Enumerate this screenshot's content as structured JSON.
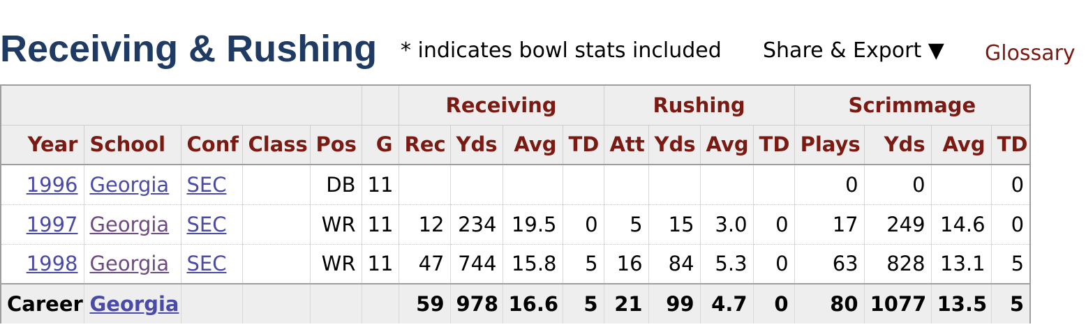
{
  "header": {
    "title": "Receiving & Rushing",
    "note": "* indicates bowl stats included",
    "share_label": "Share & Export ▼",
    "glossary_label": "Glossary"
  },
  "table": {
    "groups": {
      "receiving": "Receiving",
      "rushing": "Rushing",
      "scrimmage": "Scrimmage"
    },
    "columns": {
      "year": "Year",
      "school": "School",
      "conf": "Conf",
      "class": "Class",
      "pos": "Pos",
      "g": "G",
      "rec": "Rec",
      "rec_yds": "Yds",
      "rec_avg": "Avg",
      "rec_td": "TD",
      "att": "Att",
      "rush_yds": "Yds",
      "rush_avg": "Avg",
      "rush_td": "TD",
      "plays": "Plays",
      "scrim_yds": "Yds",
      "scrim_avg": "Avg",
      "scrim_td": "TD"
    },
    "rows": [
      {
        "year": "1996",
        "school": "Georgia",
        "conf": "SEC",
        "class": "",
        "pos": "DB",
        "g": "11",
        "rec": "",
        "rec_yds": "",
        "rec_avg": "",
        "rec_td": "",
        "att": "",
        "rush_yds": "",
        "rush_avg": "",
        "rush_td": "",
        "plays": "0",
        "scrim_yds": "0",
        "scrim_avg": "",
        "scrim_td": "0"
      },
      {
        "year": "1997",
        "school": "Georgia",
        "conf": "SEC",
        "class": "",
        "pos": "WR",
        "g": "11",
        "rec": "12",
        "rec_yds": "234",
        "rec_avg": "19.5",
        "rec_td": "0",
        "att": "5",
        "rush_yds": "15",
        "rush_avg": "3.0",
        "rush_td": "0",
        "plays": "17",
        "scrim_yds": "249",
        "scrim_avg": "14.6",
        "scrim_td": "0"
      },
      {
        "year": "1998",
        "school": "Georgia",
        "conf": "SEC",
        "class": "",
        "pos": "WR",
        "g": "11",
        "rec": "47",
        "rec_yds": "744",
        "rec_avg": "15.8",
        "rec_td": "5",
        "att": "16",
        "rush_yds": "84",
        "rush_avg": "5.3",
        "rush_td": "0",
        "plays": "63",
        "scrim_yds": "828",
        "scrim_avg": "13.1",
        "scrim_td": "5"
      }
    ],
    "career": {
      "label": "Career",
      "school": "Georgia",
      "rec": "59",
      "rec_yds": "978",
      "rec_avg": "16.6",
      "rec_td": "5",
      "att": "21",
      "rush_yds": "99",
      "rush_avg": "4.7",
      "rush_td": "0",
      "plays": "80",
      "scrim_yds": "1077",
      "scrim_avg": "13.5",
      "scrim_td": "5"
    }
  },
  "colors": {
    "title": "#1f3b63",
    "header_text": "#7a1a12",
    "link": "#4a4aa8",
    "link_visited": "#6d4a82",
    "header_bg": "#eeeeee"
  }
}
